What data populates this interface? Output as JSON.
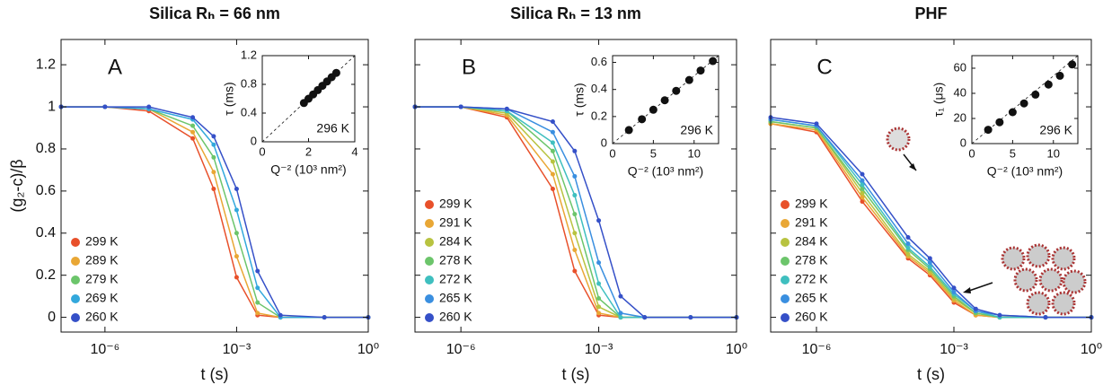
{
  "chart_data": [
    {
      "type": "scatter",
      "title": "Silica Rₕ = 66 nm",
      "label": "A",
      "xlabel": "t (s)",
      "ylabel": "(g₂-c)/β",
      "xscale": "log",
      "xlim": [
        1e-07,
        1
      ],
      "xticks": [
        {
          "value": 1e-06,
          "label": "10⁻⁶"
        },
        {
          "value": 0.001,
          "label": "10⁻³"
        },
        {
          "value": 1,
          "label": "10⁰"
        }
      ],
      "ylim": [
        -0.07,
        1.32
      ],
      "yticks": [
        0,
        0.2,
        0.4,
        0.6,
        0.8,
        1,
        1.2
      ],
      "x": [
        1e-07,
        1e-06,
        1e-05,
        0.0001,
        0.0003,
        0.001,
        0.003,
        0.01,
        0.1,
        1
      ],
      "series": [
        {
          "name": "299 K",
          "color": "#e8502a",
          "values": [
            1,
            1,
            0.98,
            0.85,
            0.61,
            0.19,
            0.01,
            0,
            0,
            0
          ]
        },
        {
          "name": "289 K",
          "color": "#e9a735",
          "values": [
            1,
            1,
            0.99,
            0.88,
            0.69,
            0.29,
            0.02,
            0,
            0,
            0
          ]
        },
        {
          "name": "279 K",
          "color": "#6cc56b",
          "values": [
            1,
            1,
            0.99,
            0.91,
            0.76,
            0.4,
            0.07,
            0,
            0,
            0
          ]
        },
        {
          "name": "269 K",
          "color": "#33a8dc",
          "values": [
            1,
            1,
            0.99,
            0.94,
            0.82,
            0.51,
            0.14,
            0,
            0,
            0
          ]
        },
        {
          "name": "260 K",
          "color": "#3550c8",
          "values": [
            1,
            1,
            1,
            0.95,
            0.86,
            0.61,
            0.22,
            0.01,
            0,
            0
          ]
        }
      ],
      "inset": {
        "type": "scatter",
        "xlabel": "Q⁻² (10³ nm²)",
        "ylabel": "τ (ms)",
        "annotation": "296 K",
        "xlim": [
          0,
          4
        ],
        "xticks": [
          0,
          2,
          4
        ],
        "ylim": [
          0,
          1.2
        ],
        "yticks": [
          0,
          0.4,
          0.8,
          1.2
        ],
        "color": "#111",
        "x": [
          1.8,
          2.0,
          2.2,
          2.4,
          2.6,
          2.8,
          3.0,
          3.2
        ],
        "values": [
          0.54,
          0.6,
          0.66,
          0.72,
          0.78,
          0.84,
          0.9,
          0.96
        ]
      }
    },
    {
      "type": "scatter",
      "title": "Silica Rₕ = 13 nm",
      "label": "B",
      "xlabel": "t (s)",
      "xscale": "log",
      "xlim": [
        1e-07,
        1
      ],
      "xticks": [
        {
          "value": 1e-06,
          "label": "10⁻⁶"
        },
        {
          "value": 0.001,
          "label": "10⁻³"
        },
        {
          "value": 1,
          "label": "10⁰"
        }
      ],
      "ylim": [
        -0.07,
        1.32
      ],
      "yticks": [
        0,
        0.2,
        0.4,
        0.6,
        0.8,
        1,
        1.2
      ],
      "x": [
        1e-07,
        1e-06,
        1e-05,
        0.0001,
        0.0003,
        0.001,
        0.003,
        0.01,
        0.1,
        1
      ],
      "series": [
        {
          "name": "299 K",
          "color": "#e8502a",
          "values": [
            1,
            1,
            0.95,
            0.61,
            0.22,
            0.01,
            0,
            0,
            0,
            0
          ]
        },
        {
          "name": "291 K",
          "color": "#e9a735",
          "values": [
            1,
            1,
            0.96,
            0.68,
            0.32,
            0.02,
            0,
            0,
            0,
            0
          ]
        },
        {
          "name": "284 K",
          "color": "#b8c340",
          "values": [
            1,
            1,
            0.97,
            0.74,
            0.4,
            0.05,
            0,
            0,
            0,
            0
          ]
        },
        {
          "name": "278 K",
          "color": "#6cc56b",
          "values": [
            1,
            1,
            0.98,
            0.79,
            0.49,
            0.09,
            0,
            0,
            0,
            0
          ]
        },
        {
          "name": "272 K",
          "color": "#3fbfbf",
          "values": [
            1,
            1,
            0.98,
            0.83,
            0.58,
            0.16,
            0,
            0,
            0,
            0
          ]
        },
        {
          "name": "265 K",
          "color": "#3a8fe0",
          "values": [
            1,
            1,
            0.99,
            0.88,
            0.67,
            0.26,
            0.02,
            0,
            0,
            0
          ]
        },
        {
          "name": "260 K",
          "color": "#3550c8",
          "values": [
            1,
            1,
            0.99,
            0.93,
            0.79,
            0.46,
            0.1,
            0,
            0,
            0
          ]
        }
      ],
      "inset": {
        "type": "scatter",
        "xlabel": "Q⁻² (10³ nm²)",
        "ylabel": "τ (ms)",
        "annotation": "296 K",
        "xlim": [
          0,
          13
        ],
        "xticks": [
          0,
          5,
          10
        ],
        "ylim": [
          0,
          0.65
        ],
        "yticks": [
          0,
          0.2,
          0.4,
          0.6
        ],
        "color": "#111",
        "x": [
          2,
          3.6,
          5,
          6.4,
          7.8,
          9.4,
          10.8,
          12.3
        ],
        "values": [
          0.1,
          0.18,
          0.25,
          0.32,
          0.39,
          0.47,
          0.54,
          0.61
        ]
      }
    },
    {
      "type": "scatter",
      "title": "PHF",
      "label": "C",
      "xlabel": "t (s)",
      "xscale": "log",
      "xlim": [
        1e-07,
        1
      ],
      "xticks": [
        {
          "value": 1e-06,
          "label": "10⁻⁶"
        },
        {
          "value": 0.001,
          "label": "10⁻³"
        },
        {
          "value": 1,
          "label": "10⁰"
        }
      ],
      "ylim": [
        -0.07,
        1.32
      ],
      "yticks": [
        0,
        0.2,
        0.4,
        0.6,
        0.8,
        1,
        1.2
      ],
      "x": [
        1e-07,
        1e-06,
        1e-05,
        0.0001,
        0.0003,
        0.001,
        0.003,
        0.01,
        0.1,
        1
      ],
      "series": [
        {
          "name": "299 K",
          "color": "#e8502a",
          "values": [
            0.92,
            0.88,
            0.55,
            0.28,
            0.2,
            0.07,
            0.01,
            0,
            0,
            0
          ]
        },
        {
          "name": "291 K",
          "color": "#e9a735",
          "values": [
            0.92,
            0.89,
            0.57,
            0.29,
            0.21,
            0.08,
            0.01,
            0,
            0,
            0
          ]
        },
        {
          "name": "284 K",
          "color": "#b8c340",
          "values": [
            0.93,
            0.9,
            0.59,
            0.3,
            0.22,
            0.09,
            0.02,
            0,
            0,
            0
          ]
        },
        {
          "name": "278 K",
          "color": "#6cc56b",
          "values": [
            0.93,
            0.9,
            0.61,
            0.32,
            0.23,
            0.1,
            0.02,
            0,
            0,
            0
          ]
        },
        {
          "name": "272 K",
          "color": "#3fbfbf",
          "values": [
            0.94,
            0.91,
            0.63,
            0.33,
            0.24,
            0.11,
            0.03,
            0,
            0,
            0
          ]
        },
        {
          "name": "265 K",
          "color": "#3a8fe0",
          "values": [
            0.94,
            0.91,
            0.65,
            0.35,
            0.26,
            0.12,
            0.03,
            0.01,
            0,
            0
          ]
        },
        {
          "name": "260 K",
          "color": "#3550c8",
          "values": [
            0.95,
            0.92,
            0.68,
            0.38,
            0.28,
            0.14,
            0.04,
            0.01,
            0,
            0
          ]
        }
      ],
      "inset": {
        "type": "scatter",
        "xlabel": "Q⁻² (10³ nm²)",
        "ylabel": "τ₁ (μs)",
        "annotation": "296 K",
        "xlim": [
          0,
          13
        ],
        "xticks": [
          0,
          5,
          10
        ],
        "ylim": [
          0,
          70
        ],
        "yticks": [
          0,
          20,
          40,
          60
        ],
        "color": "#111",
        "x": [
          2,
          3.4,
          5,
          6.4,
          7.8,
          9.4,
          10.8,
          12.3
        ],
        "values": [
          11,
          17,
          25,
          32,
          39,
          47,
          54,
          63
        ]
      }
    }
  ]
}
